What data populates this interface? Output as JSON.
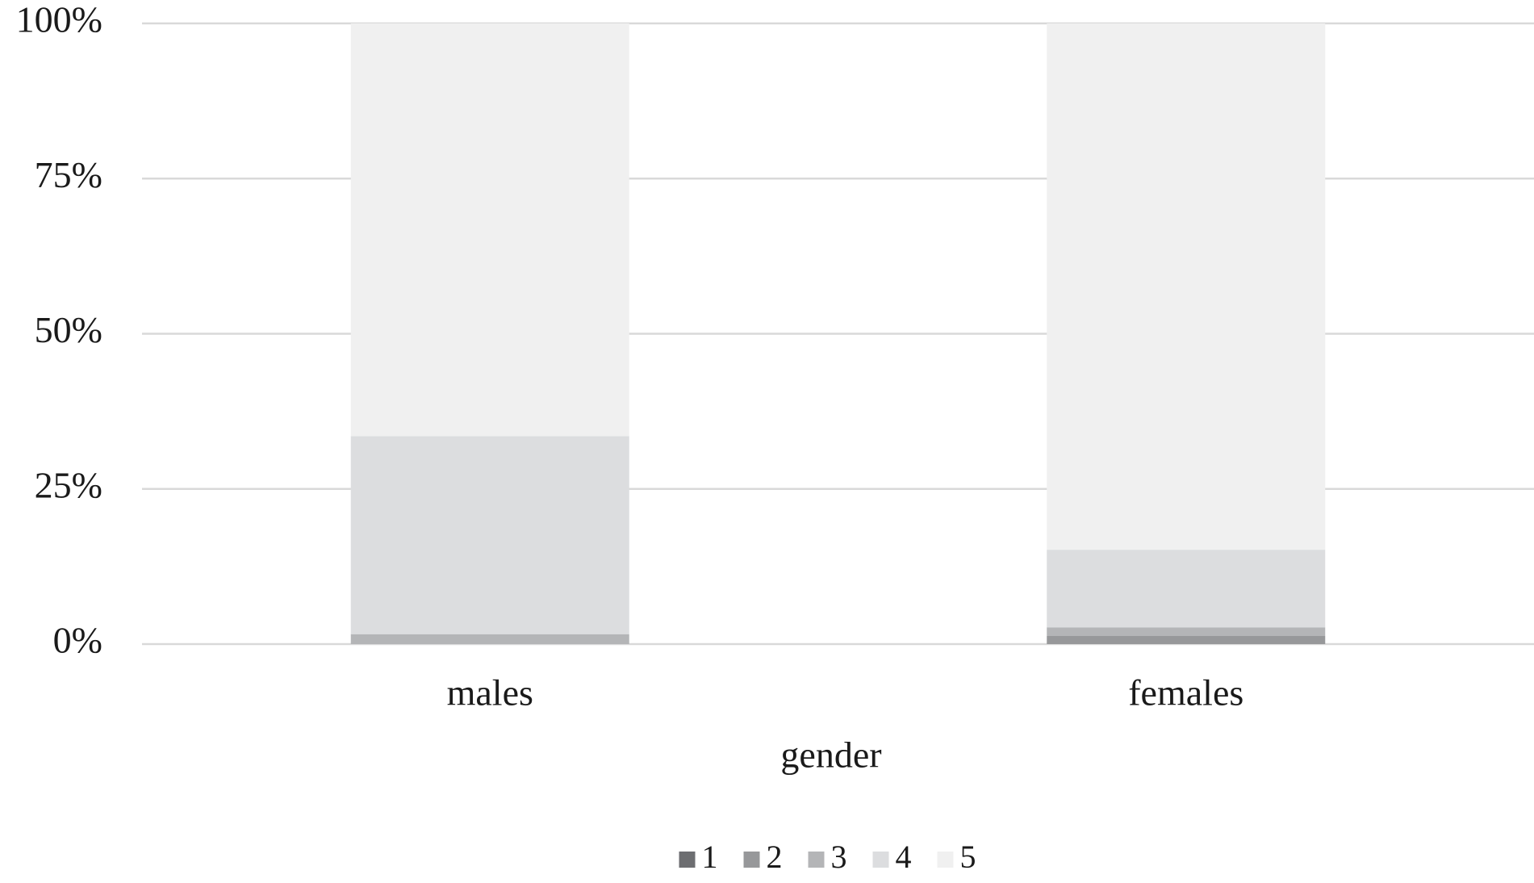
{
  "chart_data": {
    "type": "stacked_bar",
    "x_label": "gender",
    "categories": [
      "males",
      "females"
    ],
    "series": [
      {
        "name": "1",
        "color": "#6d6e71",
        "values": [
          0,
          0
        ]
      },
      {
        "name": "2",
        "color": "#97989a",
        "values": [
          0,
          1.3
        ]
      },
      {
        "name": "3",
        "color": "#b4b5b7",
        "values": [
          1.6,
          1.4
        ]
      },
      {
        "name": "4",
        "color": "#dcdddf",
        "values": [
          31.9,
          12.5
        ]
      },
      {
        "name": "5",
        "color": "#f0f0f0",
        "values": [
          66.5,
          84.8
        ]
      }
    ],
    "ylim": [
      0,
      100
    ],
    "yticks": [
      {
        "value": 0,
        "label": "0%"
      },
      {
        "value": 25,
        "label": "25%"
      },
      {
        "value": 50,
        "label": "50%"
      },
      {
        "value": 75,
        "label": "75%"
      },
      {
        "value": 100,
        "label": "100%"
      }
    ],
    "grid": true,
    "legend": "bottom"
  }
}
